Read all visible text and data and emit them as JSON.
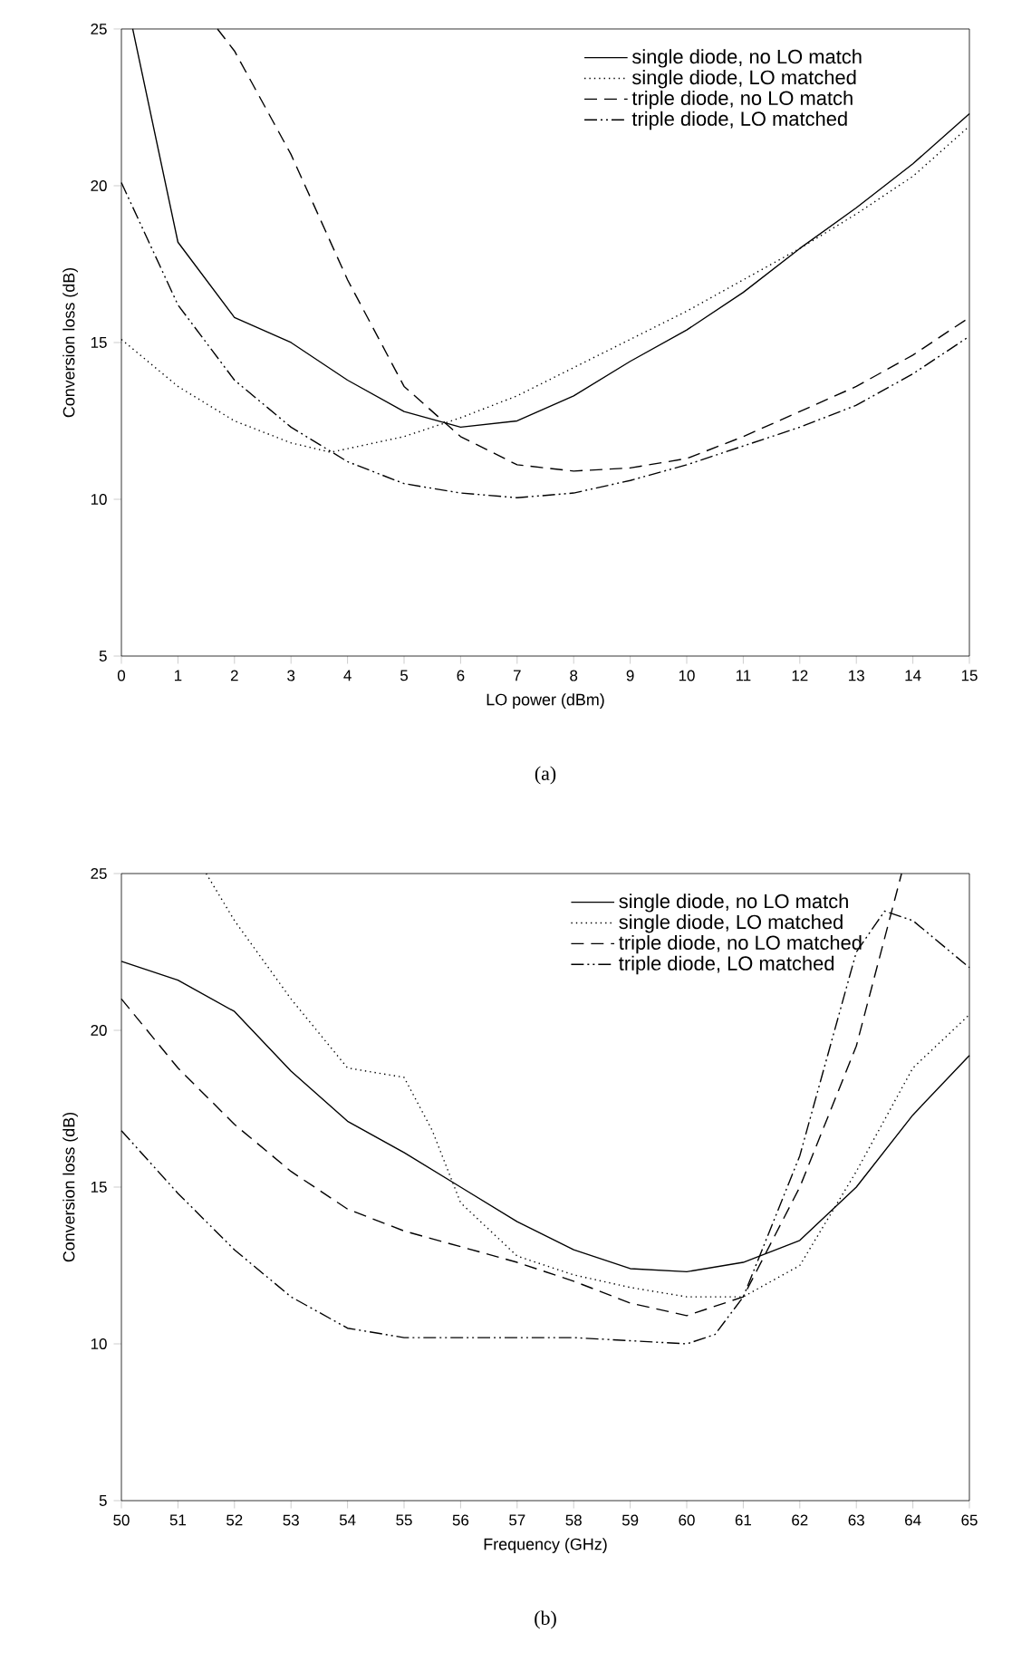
{
  "chart_data": [
    {
      "type": "line",
      "xlabel": "LO power (dBm)",
      "ylabel": "Conversion loss (dB)",
      "xlim": [
        0,
        15
      ],
      "xticks": [
        0,
        1,
        2,
        3,
        4,
        5,
        6,
        7,
        8,
        9,
        10,
        11,
        12,
        13,
        14,
        15
      ],
      "ylim": [
        5,
        25
      ],
      "yticks": [
        5,
        10,
        15,
        20,
        25
      ],
      "grid": false,
      "legend": "top right",
      "marker": "none",
      "annotations": [
        "(a)"
      ],
      "series": [
        {
          "name": "single diode, no LO match",
          "color": "#000000",
          "line_style": "solid",
          "x": [
            0.2,
            1,
            2,
            3,
            4,
            5,
            6,
            7,
            8,
            9,
            10,
            11,
            12,
            13,
            14,
            15
          ],
          "values": [
            25,
            18.2,
            15.8,
            15.0,
            13.8,
            12.8,
            12.3,
            12.5,
            13.3,
            14.4,
            15.4,
            16.6,
            18.0,
            19.3,
            20.7,
            22.3
          ]
        },
        {
          "name": "single diode, LO matched",
          "color": "#000000",
          "line_style": "dotted",
          "x": [
            0,
            1,
            2,
            3,
            3.7,
            5,
            6,
            7,
            8,
            9,
            10,
            11,
            12,
            13,
            14,
            15
          ],
          "values": [
            15.1,
            13.6,
            12.5,
            11.8,
            11.5,
            12.0,
            12.6,
            13.3,
            14.2,
            15.1,
            16.0,
            17.0,
            18.0,
            19.1,
            20.3,
            21.9
          ]
        },
        {
          "name": "triple diode, no LO match",
          "color": "#000000",
          "line_style": "dashed",
          "x": [
            1.7,
            2,
            3,
            4,
            5,
            6,
            7,
            8,
            9,
            10,
            11,
            12,
            13,
            14,
            15
          ],
          "values": [
            25,
            24.3,
            21.0,
            17.0,
            13.6,
            12.0,
            11.1,
            10.9,
            11.0,
            11.3,
            12.0,
            12.8,
            13.6,
            14.6,
            15.8
          ]
        },
        {
          "name": "triple diode, LO matched",
          "color": "#000000",
          "line_style": "dashdot",
          "x": [
            0,
            1,
            2,
            3,
            4,
            5,
            6,
            7,
            8,
            9,
            10,
            11,
            12,
            13,
            14,
            15
          ],
          "values": [
            20.1,
            16.2,
            13.8,
            12.3,
            11.2,
            10.5,
            10.2,
            10.05,
            10.2,
            10.6,
            11.1,
            11.7,
            12.3,
            13.0,
            14.0,
            15.2
          ]
        }
      ]
    },
    {
      "type": "line",
      "xlabel": "Frequency (GHz)",
      "ylabel": "Conversion loss (dB)",
      "xlim": [
        50,
        65
      ],
      "xticks": [
        50,
        51,
        52,
        53,
        54,
        55,
        56,
        57,
        58,
        59,
        60,
        61,
        62,
        63,
        64,
        65
      ],
      "ylim": [
        5,
        25
      ],
      "yticks": [
        5,
        10,
        15,
        20,
        25
      ],
      "grid": false,
      "legend": "top right",
      "marker": "none",
      "annotations": [
        "(b)"
      ],
      "series": [
        {
          "name": "single diode, no LO match",
          "color": "#000000",
          "line_style": "solid",
          "x": [
            50,
            51,
            52,
            53,
            54,
            55,
            56,
            57,
            58,
            59,
            60,
            61,
            62,
            63,
            64,
            65
          ],
          "values": [
            22.2,
            21.6,
            20.6,
            18.7,
            17.1,
            16.1,
            15.0,
            13.9,
            13.0,
            12.4,
            12.3,
            12.6,
            13.3,
            15.0,
            17.3,
            19.2
          ]
        },
        {
          "name": "single diode, LO matched",
          "color": "#000000",
          "line_style": "dotted",
          "x": [
            51.5,
            52,
            53,
            54,
            55,
            55.5,
            56,
            57,
            58,
            59,
            60,
            61,
            62,
            63,
            64,
            65
          ],
          "values": [
            25,
            23.5,
            21.0,
            18.8,
            18.5,
            16.8,
            14.5,
            12.8,
            12.2,
            11.8,
            11.5,
            11.5,
            12.5,
            15.5,
            18.8,
            20.5
          ]
        },
        {
          "name": "triple diode, no LO matched",
          "color": "#000000",
          "line_style": "dashed",
          "x": [
            50,
            51,
            52,
            53,
            54,
            55,
            56,
            57,
            58,
            59,
            60,
            61,
            62,
            63,
            63.8
          ],
          "values": [
            21,
            18.8,
            17.0,
            15.5,
            14.3,
            13.6,
            13.1,
            12.6,
            12.0,
            11.3,
            10.9,
            11.5,
            15.0,
            19.5,
            25
          ]
        },
        {
          "name": "triple diode, LO matched",
          "color": "#000000",
          "line_style": "dashdot",
          "x": [
            50,
            51,
            52,
            53,
            54,
            55,
            56,
            57,
            58,
            59,
            60,
            60.5,
            61,
            62,
            63,
            63.5,
            64,
            65
          ],
          "values": [
            16.8,
            14.8,
            13.0,
            11.5,
            10.5,
            10.2,
            10.2,
            10.2,
            10.2,
            10.1,
            10.0,
            10.3,
            11.5,
            16.0,
            22.5,
            23.8,
            23.5,
            22.0
          ]
        }
      ]
    }
  ]
}
